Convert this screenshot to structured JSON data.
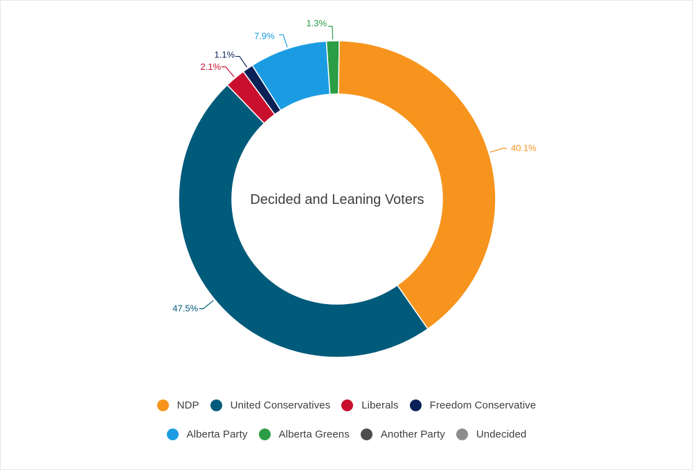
{
  "chart_data": {
    "type": "pie",
    "donut": true,
    "center_title": "Decided and Leaning Voters",
    "slices": [
      {
        "name": "NDP",
        "value": 40.1,
        "label": "40.1%",
        "color": "#f7941d"
      },
      {
        "name": "United Conservatives",
        "value": 47.5,
        "label": "47.5%",
        "color": "#005a7a"
      },
      {
        "name": "Liberals",
        "value": 2.1,
        "label": "2.1%",
        "color": "#c8102e"
      },
      {
        "name": "Freedom Conservative",
        "value": 1.1,
        "label": "1.1%",
        "color": "#0a2158"
      },
      {
        "name": "Alberta Party",
        "value": 7.9,
        "label": "7.9%",
        "color": "#1b9ce2"
      },
      {
        "name": "Alberta Greens",
        "value": 1.3,
        "label": "1.3%",
        "color": "#2a9d45"
      },
      {
        "name": "Another Party",
        "value": 0,
        "label": "",
        "color": "#4d4d4d"
      },
      {
        "name": "Undecided",
        "value": 0,
        "label": "",
        "color": "#8c8c8c"
      }
    ],
    "legend_placement": "bottom",
    "legend_rows": [
      [
        "NDP",
        "United Conservatives",
        "Liberals",
        "Freedom Conservative"
      ],
      [
        "Alberta Party",
        "Alberta Greens",
        "Another Party",
        "Undecided"
      ]
    ]
  }
}
